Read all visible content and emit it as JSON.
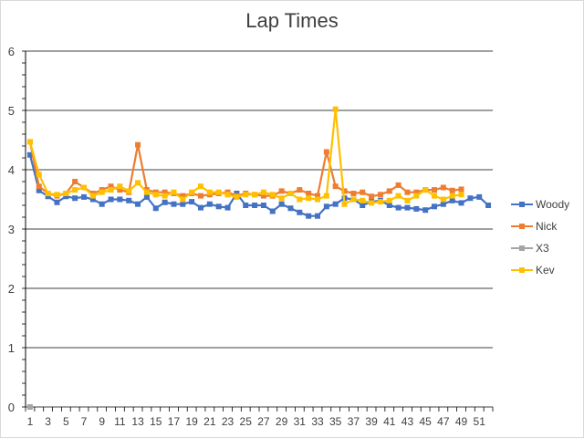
{
  "chart_data": {
    "type": "line",
    "title": "Lap Times",
    "ylim": [
      0,
      6
    ],
    "yticks": [
      0,
      1,
      2,
      3,
      4,
      5,
      6
    ],
    "x_tick_labels": [
      "1",
      "3",
      "5",
      "7",
      "9",
      "11",
      "13",
      "15",
      "17",
      "19",
      "21",
      "23",
      "25",
      "27",
      "29",
      "31",
      "33",
      "35",
      "37",
      "39",
      "41",
      "43",
      "45",
      "47",
      "49",
      "51"
    ],
    "n_categories": 52,
    "grid": true,
    "legend_position": "right",
    "series": [
      {
        "name": "Woody",
        "color": "#4472C4",
        "marker": "square",
        "values": [
          4.25,
          3.65,
          3.55,
          3.45,
          3.55,
          3.52,
          3.54,
          3.5,
          3.42,
          3.5,
          3.5,
          3.48,
          3.42,
          3.54,
          3.35,
          3.45,
          3.42,
          3.42,
          3.46,
          3.36,
          3.42,
          3.38,
          3.36,
          3.6,
          3.4,
          3.4,
          3.4,
          3.3,
          3.42,
          3.35,
          3.28,
          3.22,
          3.22,
          3.38,
          3.42,
          3.52,
          3.5,
          3.4,
          3.46,
          3.48,
          3.4,
          3.36,
          3.36,
          3.34,
          3.32,
          3.38,
          3.42,
          3.48,
          3.44,
          3.52,
          3.54,
          3.4
        ]
      },
      {
        "name": "Nick",
        "color": "#ED7D31",
        "marker": "square",
        "values": [
          4.47,
          3.72,
          3.6,
          3.56,
          3.6,
          3.8,
          3.7,
          3.6,
          3.66,
          3.72,
          3.66,
          3.62,
          4.42,
          3.66,
          3.62,
          3.62,
          3.6,
          3.56,
          3.6,
          3.56,
          3.58,
          3.6,
          3.62,
          3.56,
          3.6,
          3.58,
          3.56,
          3.56,
          3.64,
          3.6,
          3.66,
          3.6,
          3.56,
          4.3,
          3.72,
          3.64,
          3.6,
          3.62,
          3.55,
          3.58,
          3.64,
          3.74,
          3.62,
          3.62,
          3.66,
          3.66,
          3.7,
          3.65,
          3.67
        ]
      },
      {
        "name": "X3",
        "color": "#A5A5A5",
        "marker": "square",
        "values": [
          0
        ]
      },
      {
        "name": "Kev",
        "color": "#FFC000",
        "marker": "square",
        "values": [
          4.47,
          3.92,
          3.6,
          3.58,
          3.6,
          3.66,
          3.7,
          3.56,
          3.62,
          3.66,
          3.72,
          3.64,
          3.78,
          3.62,
          3.58,
          3.56,
          3.62,
          3.5,
          3.62,
          3.72,
          3.62,
          3.62,
          3.58,
          3.54,
          3.58,
          3.58,
          3.62,
          3.58,
          3.52,
          3.6,
          3.5,
          3.52,
          3.5,
          3.56,
          5.02,
          3.42,
          3.5,
          3.48,
          3.44,
          3.46,
          3.48,
          3.56,
          3.48,
          3.56,
          3.66,
          3.56,
          3.5,
          3.56,
          3.58
        ]
      }
    ]
  }
}
